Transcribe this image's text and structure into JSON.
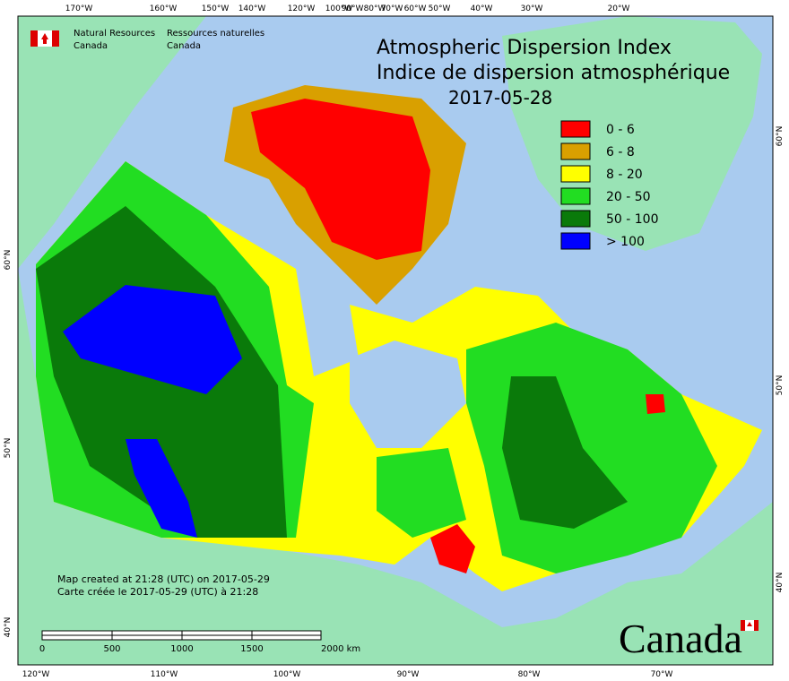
{
  "header": {
    "agency_en": [
      "Natural Resources",
      "Canada"
    ],
    "agency_fr": [
      "Ressources naturelles",
      "Canada"
    ]
  },
  "title": [
    "Atmospheric Dispersion Index",
    "Indice de dispersion atmosphérique",
    "2017-05-28"
  ],
  "legend": [
    {
      "label": "0 - 6",
      "color": "#ff0000"
    },
    {
      "label": "6 - 8",
      "color": "#d9a000"
    },
    {
      "label": "8 - 20",
      "color": "#ffff00"
    },
    {
      "label": "20 - 50",
      "color": "#22dd22"
    },
    {
      "label": "50 - 100",
      "color": "#0a7a0a"
    },
    {
      "label": "> 100",
      "color": "#0000ff"
    }
  ],
  "top_longitudes": [
    "170°W",
    "160°W",
    "150°W",
    "140°W",
    "120°W",
    "100°W",
    "90°W",
    "80°W",
    "70°W",
    "60°W",
    "50°W",
    "40°W",
    "30°W",
    "20°W"
  ],
  "bottom_longitudes": [
    "120°W",
    "110°W",
    "100°W",
    "90°W",
    "80°W",
    "70°W"
  ],
  "left_latitudes": [
    "60°N",
    "50°N",
    "40°N"
  ],
  "right_latitudes": [
    "60°N",
    "50°N",
    "40°N"
  ],
  "notes": [
    "Map created at 21:28 (UTC) on 2017-05-29",
    "Carte créée le 2017-05-29 (UTC) à 21:28"
  ],
  "scale": [
    "0",
    "500",
    "1000",
    "1500",
    "2000 km"
  ],
  "wordmark": "Canada"
}
